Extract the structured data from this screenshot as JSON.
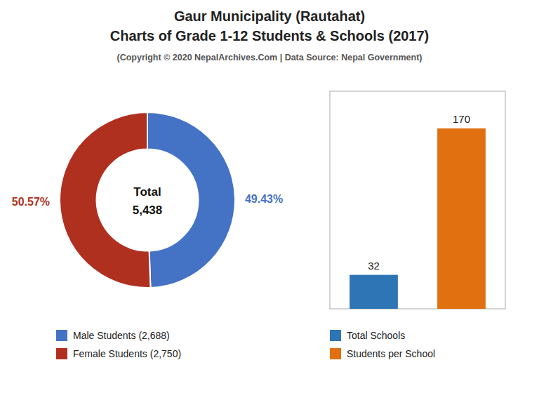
{
  "title": [
    "Gaur Municipality (Rautahat)",
    "Charts of Grade 1-12 Students & Schools (2017)"
  ],
  "subtitle": "(Copyright © 2020 NepalArchives.Com | Data Source: Nepal Government)",
  "chart_data": [
    {
      "type": "donut",
      "categories": [
        "Male Students (2,688)",
        "Female Students (2,750)"
      ],
      "values": [
        49.43,
        50.57
      ],
      "value_labels": [
        "49.43%",
        "50.57%"
      ],
      "data_labels": true,
      "colors": [
        "#4472c4",
        "#b03020"
      ],
      "annotations": [
        "Total",
        "5,438"
      ],
      "legend": "bottom"
    },
    {
      "type": "bar",
      "categories": [
        "Total Schools",
        "Students per School"
      ],
      "values": [
        32,
        170
      ],
      "colors": [
        "#2e75b6",
        "#e07010"
      ],
      "ylim": [
        0,
        205
      ],
      "data_labels": true,
      "tick_labels": false,
      "legend": "bottom"
    }
  ]
}
